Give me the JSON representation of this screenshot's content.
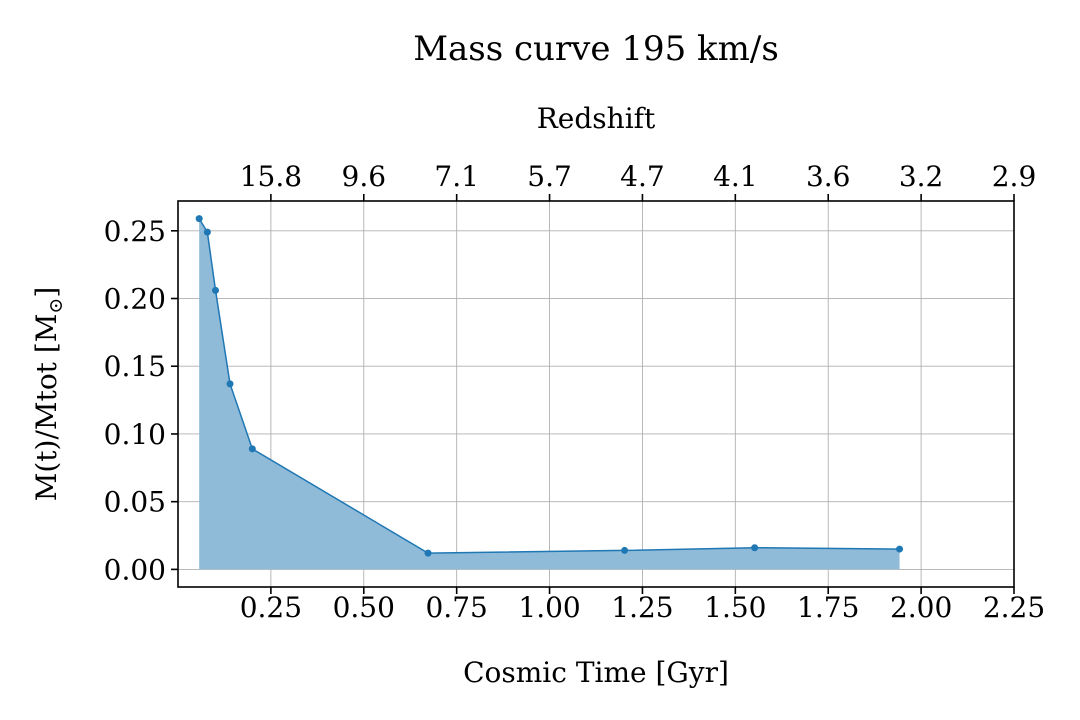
{
  "chart_data": {
    "type": "area",
    "title": "Mass curve 195 km/s",
    "xlabel": "Cosmic Time [Gyr]",
    "ylabel": "M(t)/Mtot [M",
    "ylabel_sub": "⊙",
    "ylabel_end": "]",
    "top_xlabel": "Redshift",
    "xlim": [
      0.0,
      2.25
    ],
    "ylim": [
      -0.013,
      0.272
    ],
    "grid": true,
    "line_color": "#1f77b4",
    "fill_color": "#8fbbd9",
    "x_ticks": [
      {
        "value": 0.25,
        "label": "0.25"
      },
      {
        "value": 0.5,
        "label": "0.50"
      },
      {
        "value": 0.75,
        "label": "0.75"
      },
      {
        "value": 1.0,
        "label": "1.00"
      },
      {
        "value": 1.25,
        "label": "1.25"
      },
      {
        "value": 1.5,
        "label": "1.50"
      },
      {
        "value": 1.75,
        "label": "1.75"
      },
      {
        "value": 2.0,
        "label": "2.00"
      },
      {
        "value": 2.25,
        "label": "2.25"
      }
    ],
    "y_ticks": [
      {
        "value": 0.0,
        "label": "0.00"
      },
      {
        "value": 0.05,
        "label": "0.05"
      },
      {
        "value": 0.1,
        "label": "0.10"
      },
      {
        "value": 0.15,
        "label": "0.15"
      },
      {
        "value": 0.2,
        "label": "0.20"
      },
      {
        "value": 0.25,
        "label": "0.25"
      }
    ],
    "top_ticks": [
      {
        "value": 0.25,
        "label": "15.8"
      },
      {
        "value": 0.5,
        "label": "9.6"
      },
      {
        "value": 0.75,
        "label": "7.1"
      },
      {
        "value": 1.0,
        "label": "5.7"
      },
      {
        "value": 1.25,
        "label": "4.7"
      },
      {
        "value": 1.5,
        "label": "4.1"
      },
      {
        "value": 1.75,
        "label": "3.6"
      },
      {
        "value": 2.0,
        "label": "3.2"
      },
      {
        "value": 2.25,
        "label": "2.9"
      }
    ],
    "series": [
      {
        "x": [
          0.057,
          0.079,
          0.101,
          0.14,
          0.2,
          0.673,
          1.202,
          1.552,
          1.942
        ],
        "y": [
          0.259,
          0.249,
          0.206,
          0.137,
          0.089,
          0.012,
          0.014,
          0.016,
          0.015
        ]
      }
    ]
  }
}
